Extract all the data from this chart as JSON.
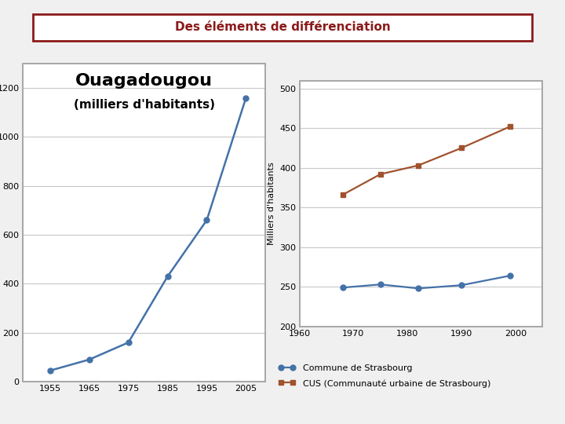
{
  "title": "Des éléments de différenciation",
  "title_color": "#8b1a1a",
  "title_border_color": "#8b1a1a",
  "title_fontsize": 11,
  "chart1": {
    "title": "Ouagadougou",
    "subtitle": "(milliers d'habitants)",
    "years": [
      1955,
      1965,
      1975,
      1985,
      1995,
      2005
    ],
    "values": [
      45,
      90,
      160,
      430,
      660,
      1160
    ],
    "line_color": "#4472a8",
    "marker": "o",
    "markersize": 5,
    "ylim": [
      0,
      1300
    ],
    "yticks": [
      0,
      200,
      400,
      600,
      800,
      1000,
      1200
    ],
    "xlim": [
      1948,
      2010
    ],
    "title_fontsize": 16,
    "subtitle_fontsize": 11
  },
  "chart2": {
    "ylabel": "Milliers d'habitants",
    "years": [
      1968,
      1975,
      1982,
      1990,
      1999
    ],
    "commune": [
      249,
      253,
      248,
      252,
      264
    ],
    "cus": [
      366,
      392,
      403,
      425,
      452
    ],
    "commune_color": "#4472a8",
    "cus_color": "#a0522d",
    "commune_marker": "o",
    "cus_marker": "s",
    "markersize": 5,
    "ylim": [
      200,
      510
    ],
    "yticks": [
      200,
      250,
      300,
      350,
      400,
      450,
      500
    ],
    "xlim": [
      1960,
      2005
    ],
    "xticks": [
      1960,
      1970,
      1980,
      1990,
      2000
    ],
    "legend_commune": "Commune de Strasbourg",
    "legend_cus": "CUS (Communauté urbaine de Strasbourg)"
  },
  "bg_color": "#f0f0f0",
  "panel_bg": "#ffffff",
  "panel_border": "#999999"
}
